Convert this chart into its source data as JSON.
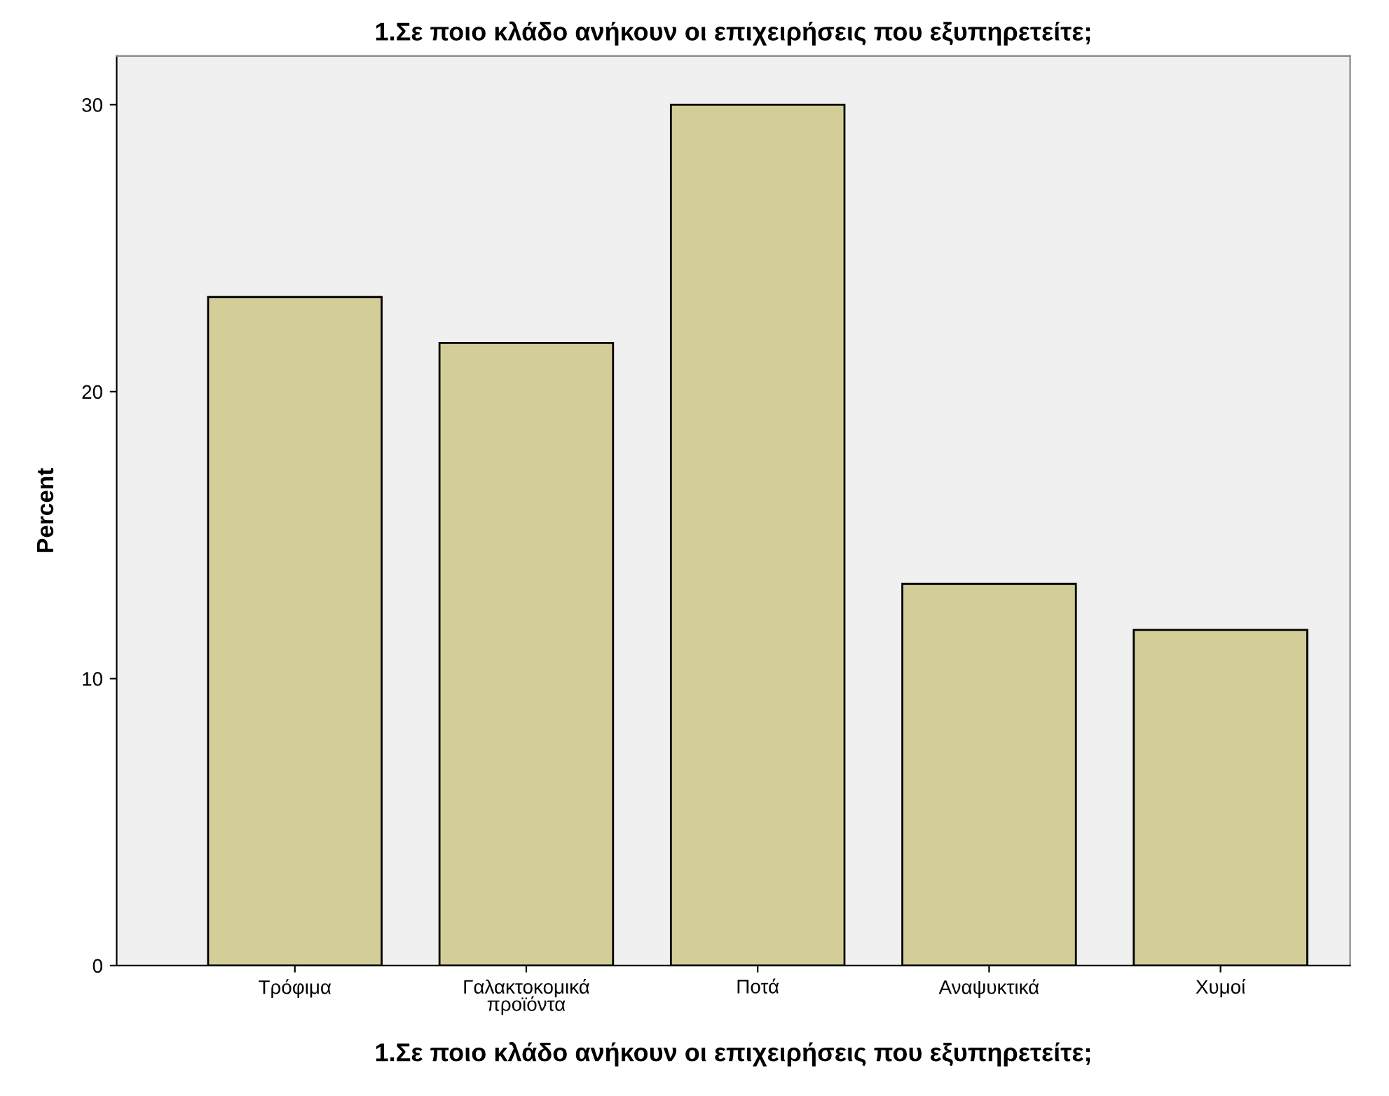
{
  "chart_data": {
    "type": "bar",
    "title": "1.Σε ποιο κλάδο ανήκουν οι επιχειρήσεις που εξυπηρετείτε;",
    "xlabel": "1.Σε ποιο κλάδο ανήκουν οι επιχειρήσεις που εξυπηρετείτε;",
    "ylabel": "Percent",
    "categories": [
      "Τρόφιμα",
      "Γαλακτοκομικά\nπροϊόντα",
      "Ποτά",
      "Αναψυκτικά",
      "Χυμοί"
    ],
    "values": [
      23.3,
      21.7,
      30.0,
      13.3,
      11.7
    ],
    "color": "#d3ce97",
    "ylim": [
      0,
      31.7
    ],
    "yticks": [
      0,
      10,
      20,
      30
    ],
    "grid": false
  }
}
